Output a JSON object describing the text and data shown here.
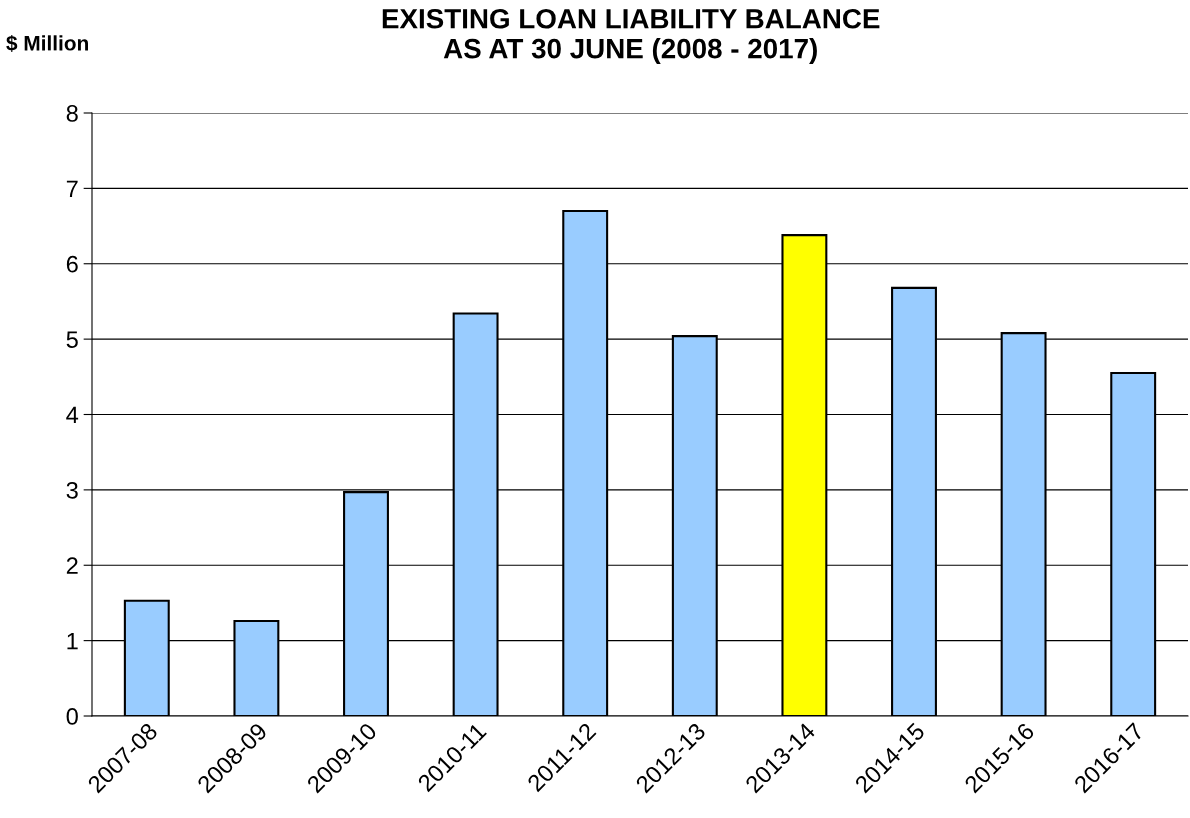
{
  "chart_data": {
    "type": "bar",
    "title": "EXISTING LOAN LIABILITY BALANCE\nAS AT 30 JUNE (2008 - 2017)",
    "ylabel": "$ Million",
    "categories": [
      "2007-08",
      "2008-09",
      "2009-10",
      "2010-11",
      "2011-12",
      "2012-13",
      "2013-14",
      "2014-15",
      "2015-16",
      "2016-17"
    ],
    "values": [
      1.53,
      1.26,
      2.97,
      5.34,
      6.7,
      5.04,
      6.38,
      5.68,
      5.08,
      4.55
    ],
    "colors": [
      "#99ccff",
      "#99ccff",
      "#99ccff",
      "#99ccff",
      "#99ccff",
      "#99ccff",
      "#ffff00",
      "#99ccff",
      "#99ccff",
      "#99ccff"
    ],
    "ylim": [
      0,
      8
    ],
    "yticks": [
      0,
      1,
      2,
      3,
      4,
      5,
      6,
      7,
      8
    ],
    "grid": "y",
    "legend": false
  }
}
